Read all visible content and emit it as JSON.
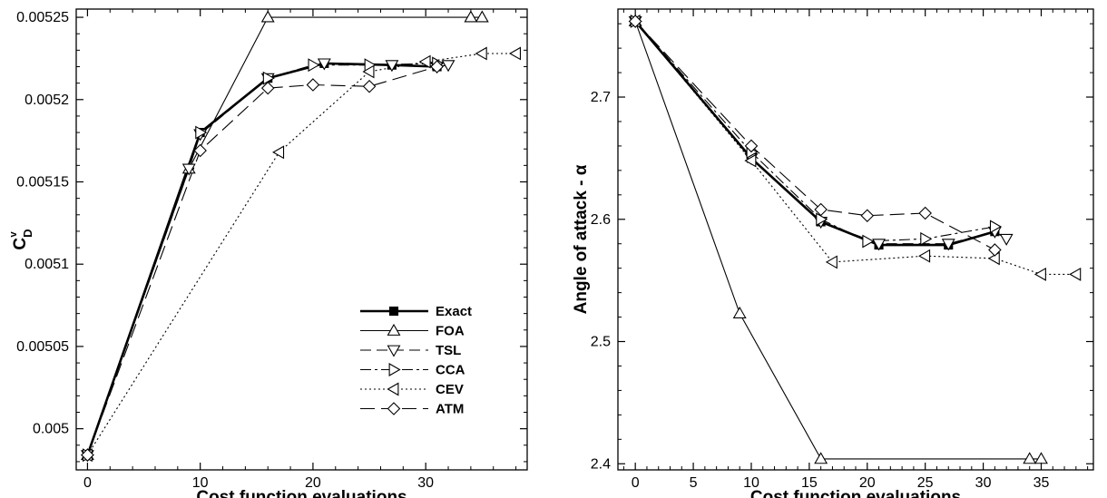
{
  "styles": {
    "Exact": {
      "dash": "",
      "width": 2.6,
      "marker": "square",
      "fill": "#000"
    },
    "FOA": {
      "dash": "",
      "width": 1.1,
      "marker": "triangle-up",
      "fill": "none"
    },
    "TSL": {
      "dash": "12 6",
      "width": 1.1,
      "marker": "triangle-down",
      "fill": "none"
    },
    "CCA": {
      "dash": "12 4 3 4",
      "width": 1.1,
      "marker": "triangle-right",
      "fill": "none"
    },
    "CEV": {
      "dash": "2 3",
      "width": 1.1,
      "marker": "triangle-left",
      "fill": "none"
    },
    "ATM": {
      "dash": "16 7",
      "width": 1.1,
      "marker": "diamond",
      "fill": "none"
    }
  },
  "chart_data": [
    {
      "type": "line",
      "xlabel": "Cost function evaluations",
      "ylabel_main": "C",
      "ylabel_sub": "D",
      "ylabel_sup": "v",
      "xlim": [
        -1,
        39
      ],
      "ylim": [
        0.004975,
        0.005255
      ],
      "xticks": [
        0,
        10,
        20,
        30
      ],
      "xtick_labels": [
        "0",
        "10",
        "20",
        "30"
      ],
      "yticks": [
        0.005,
        0.00505,
        0.0051,
        0.00515,
        0.0052,
        0.00525
      ],
      "ytick_labels": [
        "0.005",
        "0.00505",
        "0.0051",
        "0.00515",
        "0.0052",
        "0.00525"
      ],
      "legend": {
        "position": "lower-right",
        "entries": [
          "Exact",
          "FOA",
          "TSL",
          "CCA",
          "CEV",
          "ATM"
        ]
      },
      "series": [
        {
          "name": "Exact",
          "x": [
            0,
            10,
            16,
            21,
            27,
            31
          ],
          "y": [
            0.004984,
            0.00518,
            0.005213,
            0.005222,
            0.005221,
            0.00522
          ]
        },
        {
          "name": "FOA",
          "x": [
            0,
            9,
            16,
            34,
            35
          ],
          "y": [
            0.004984,
            0.005158,
            0.00525,
            0.00525,
            0.00525
          ]
        },
        {
          "name": "TSL",
          "x": [
            0,
            9,
            10,
            16,
            21,
            27,
            31,
            32
          ],
          "y": [
            0.004984,
            0.005158,
            0.005179,
            0.005213,
            0.005222,
            0.005221,
            0.00522,
            0.005221
          ]
        },
        {
          "name": "CCA",
          "x": [
            0,
            10,
            16,
            20,
            25,
            31
          ],
          "y": [
            0.004984,
            0.00518,
            0.005213,
            0.005221,
            0.005221,
            0.005222
          ]
        },
        {
          "name": "CEV",
          "x": [
            0,
            17,
            25,
            30,
            35,
            38
          ],
          "y": [
            0.004984,
            0.005168,
            0.005217,
            0.005223,
            0.005228,
            0.005228
          ]
        },
        {
          "name": "ATM",
          "x": [
            0,
            10,
            16,
            20,
            25,
            31
          ],
          "y": [
            0.004984,
            0.005169,
            0.005207,
            0.005209,
            0.005208,
            0.00522
          ]
        }
      ]
    },
    {
      "type": "line",
      "xlabel": "Cost function evaluations",
      "ylabel": "Angle of attack - α",
      "xlim": [
        -1.5,
        39.5
      ],
      "ylim": [
        2.395,
        2.772
      ],
      "xticks": [
        0,
        5,
        10,
        15,
        20,
        25,
        30,
        35
      ],
      "xtick_labels": [
        "0",
        "5",
        "10",
        "15",
        "20",
        "25",
        "30",
        "35"
      ],
      "yticks": [
        2.4,
        2.5,
        2.6,
        2.7
      ],
      "ytick_labels": [
        "2.4",
        "2.5",
        "2.6",
        "2.7"
      ],
      "series": [
        {
          "name": "Exact",
          "x": [
            0,
            10,
            16,
            21,
            27,
            31
          ],
          "y": [
            2.762,
            2.65,
            2.598,
            2.579,
            2.579,
            2.59
          ]
        },
        {
          "name": "FOA",
          "x": [
            0,
            9,
            16,
            34,
            35
          ],
          "y": [
            2.762,
            2.523,
            2.404,
            2.404,
            2.404
          ]
        },
        {
          "name": "TSL",
          "x": [
            0,
            10,
            16,
            21,
            27,
            31,
            32
          ],
          "y": [
            2.762,
            2.65,
            2.598,
            2.58,
            2.58,
            2.59,
            2.584
          ]
        },
        {
          "name": "CCA",
          "x": [
            0,
            10,
            16,
            20,
            25,
            31
          ],
          "y": [
            2.762,
            2.655,
            2.6,
            2.582,
            2.584,
            2.594
          ]
        },
        {
          "name": "CEV",
          "x": [
            0,
            10,
            17,
            25,
            31,
            35,
            38
          ],
          "y": [
            2.762,
            2.648,
            2.565,
            2.57,
            2.568,
            2.555,
            2.555
          ]
        },
        {
          "name": "ATM",
          "x": [
            0,
            10,
            16,
            20,
            25,
            31
          ],
          "y": [
            2.762,
            2.66,
            2.608,
            2.603,
            2.605,
            2.575
          ]
        }
      ]
    }
  ]
}
